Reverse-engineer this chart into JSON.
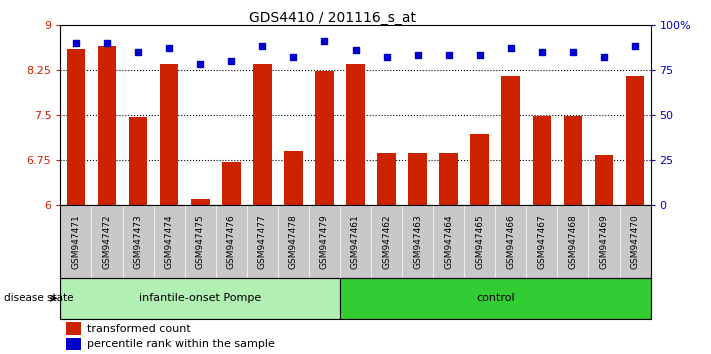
{
  "title": "GDS4410 / 201116_s_at",
  "samples": [
    "GSM947471",
    "GSM947472",
    "GSM947473",
    "GSM947474",
    "GSM947475",
    "GSM947476",
    "GSM947477",
    "GSM947478",
    "GSM947479",
    "GSM947461",
    "GSM947462",
    "GSM947463",
    "GSM947464",
    "GSM947465",
    "GSM947466",
    "GSM947467",
    "GSM947468",
    "GSM947469",
    "GSM947470"
  ],
  "transformed_count": [
    8.6,
    8.65,
    7.47,
    8.35,
    6.1,
    6.72,
    8.35,
    6.9,
    8.23,
    8.35,
    6.87,
    6.87,
    6.87,
    7.18,
    8.15,
    7.48,
    7.48,
    6.83,
    8.15
  ],
  "percentile_rank": [
    90,
    90,
    85,
    87,
    78,
    80,
    88,
    82,
    91,
    86,
    82,
    83,
    83,
    83,
    87,
    85,
    85,
    82,
    88
  ],
  "groups": [
    "infantile-onset Pompe",
    "infantile-onset Pompe",
    "infantile-onset Pompe",
    "infantile-onset Pompe",
    "infantile-onset Pompe",
    "infantile-onset Pompe",
    "infantile-onset Pompe",
    "infantile-onset Pompe",
    "infantile-onset Pompe",
    "control",
    "control",
    "control",
    "control",
    "control",
    "control",
    "control",
    "control",
    "control",
    "control"
  ],
  "group_colors": {
    "infantile-onset Pompe": "#b2efb2",
    "control": "#32cd32"
  },
  "bar_color": "#cc2200",
  "dot_color": "#0000cc",
  "ylim_left": [
    6,
    9
  ],
  "ylim_right": [
    0,
    100
  ],
  "yticks_left": [
    6,
    6.75,
    7.5,
    8.25,
    9
  ],
  "yticks_right": [
    0,
    25,
    50,
    75,
    100
  ],
  "ytick_labels_right": [
    "0",
    "25",
    "50",
    "75",
    "100%"
  ],
  "hlines": [
    6.75,
    7.5,
    8.25
  ],
  "bar_width": 0.6,
  "background_color": "#ffffff",
  "tick_area_color": "#c8c8c8",
  "legend_items": [
    "transformed count",
    "percentile rank within the sample"
  ],
  "legend_colors": [
    "#cc2200",
    "#0000cc"
  ],
  "disease_state_label": "disease state"
}
